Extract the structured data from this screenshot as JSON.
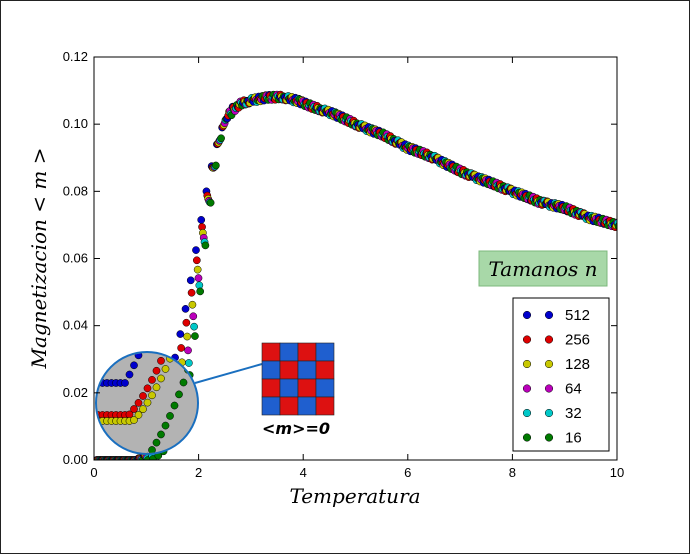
{
  "chart_data": {
    "type": "scatter",
    "title": "",
    "xlabel": "Temperatura",
    "ylabel": "Magnetizacion  < m >",
    "xlim": [
      0,
      10
    ],
    "ylim": [
      0,
      0.12
    ],
    "x_ticks": [
      "0",
      "2",
      "4",
      "6",
      "8",
      "10"
    ],
    "y_ticks": [
      "0.00",
      "0.02",
      "0.04",
      "0.06",
      "0.08",
      "0.10",
      "0.12"
    ],
    "grid": false,
    "legend_position": "lower-right",
    "annotation_box": "Tamanos n",
    "inset_label": "<m>=0",
    "series": [
      {
        "name": "512",
        "color": "#0000cc",
        "offset": 0
      },
      {
        "name": "256",
        "color": "#dd0000",
        "offset": 1
      },
      {
        "name": "128",
        "color": "#c8c800",
        "offset": 2
      },
      {
        "name": "64",
        "color": "#bb00bb",
        "offset": 3
      },
      {
        "name": "32",
        "color": "#00c8c8",
        "offset": 4
      },
      {
        "name": "16",
        "color": "#007a00",
        "offset": 5
      }
    ],
    "curve_x": [
      0.0,
      0.3,
      0.6,
      0.8,
      0.9,
      1.0,
      1.1,
      1.2,
      1.3,
      1.4,
      1.5,
      1.6,
      1.7,
      1.8,
      1.9,
      2.0,
      2.1,
      2.2,
      2.3,
      2.4,
      2.5,
      2.6,
      2.8,
      3.0,
      3.3,
      3.6,
      3.9,
      4.2,
      4.6,
      5.0,
      5.5,
      6.0,
      6.5,
      7.0,
      7.5,
      8.0,
      8.5,
      9.0,
      9.5,
      10.0
    ],
    "curve_512": [
      0.0,
      0.0,
      0.0,
      0.0,
      0.001,
      0.002,
      0.005,
      0.01,
      0.015,
      0.021,
      0.027,
      0.034,
      0.041,
      0.049,
      0.058,
      0.067,
      0.076,
      0.084,
      0.091,
      0.097,
      0.101,
      0.104,
      0.106,
      0.107,
      0.108,
      0.108,
      0.107,
      0.105,
      0.103,
      0.1,
      0.097,
      0.093,
      0.09,
      0.086,
      0.083,
      0.08,
      0.077,
      0.075,
      0.072,
      0.07
    ],
    "curve_16": [
      0.0,
      0.0,
      0.0,
      0.0,
      0.0,
      0.0,
      0.0,
      0.001,
      0.002,
      0.004,
      0.006,
      0.009,
      0.014,
      0.022,
      0.033,
      0.046,
      0.06,
      0.073,
      0.085,
      0.094,
      0.1,
      0.103,
      0.106,
      0.107,
      0.108,
      0.108,
      0.107,
      0.105,
      0.103,
      0.1,
      0.097,
      0.093,
      0.09,
      0.086,
      0.083,
      0.08,
      0.077,
      0.075,
      0.072,
      0.07
    ]
  }
}
